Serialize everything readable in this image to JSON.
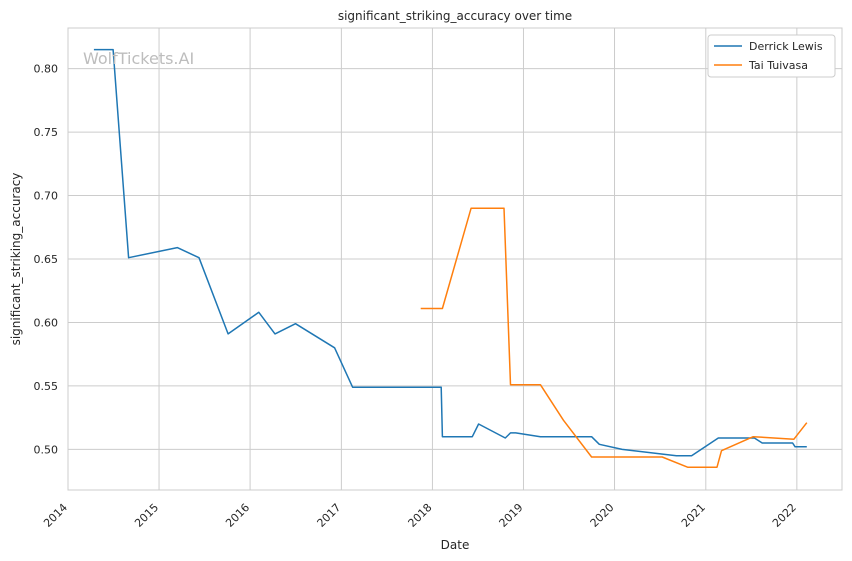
{
  "chart_data": {
    "type": "line",
    "title": "significant_striking_accuracy over time",
    "xlabel": "Date",
    "ylabel": "significant_striking_accuracy",
    "watermark": "WolfTickets.AI",
    "xlim": [
      "2014-01-01",
      "2022-07-01"
    ],
    "ylim": [
      0.468,
      0.832
    ],
    "grid": true,
    "legend_position": "top-right",
    "x_ticks": [
      "2014",
      "2015",
      "2016",
      "2017",
      "2018",
      "2019",
      "2020",
      "2021",
      "2022"
    ],
    "y_ticks": [
      "0.50",
      "0.55",
      "0.60",
      "0.65",
      "0.70",
      "0.75",
      "0.80"
    ],
    "series": [
      {
        "name": "Derrick Lewis",
        "color": "#1f77b4",
        "points": [
          [
            "2014-04-15",
            0.815
          ],
          [
            "2014-07-01",
            0.815
          ],
          [
            "2014-09-01",
            0.651
          ],
          [
            "2015-03-15",
            0.659
          ],
          [
            "2015-06-10",
            0.651
          ],
          [
            "2015-10-05",
            0.591
          ],
          [
            "2016-02-05",
            0.608
          ],
          [
            "2016-04-10",
            0.591
          ],
          [
            "2016-07-01",
            0.599
          ],
          [
            "2016-12-05",
            0.58
          ],
          [
            "2017-02-15",
            0.549
          ],
          [
            "2018-02-05",
            0.549
          ],
          [
            "2018-02-10",
            0.51
          ],
          [
            "2018-06-10",
            0.51
          ],
          [
            "2018-07-05",
            0.52
          ],
          [
            "2018-10-20",
            0.509
          ],
          [
            "2018-11-10",
            0.513
          ],
          [
            "2018-12-01",
            0.513
          ],
          [
            "2019-03-10",
            0.51
          ],
          [
            "2019-10-01",
            0.51
          ],
          [
            "2019-11-01",
            0.504
          ],
          [
            "2020-02-01",
            0.5
          ],
          [
            "2020-09-05",
            0.495
          ],
          [
            "2020-11-05",
            0.495
          ],
          [
            "2021-02-20",
            0.509
          ],
          [
            "2021-07-15",
            0.509
          ],
          [
            "2021-08-15",
            0.505
          ],
          [
            "2021-12-15",
            0.505
          ],
          [
            "2021-12-25",
            0.502
          ],
          [
            "2022-02-10",
            0.502
          ]
        ]
      },
      {
        "name": "Tai Tuivasa",
        "color": "#ff7f0e",
        "points": [
          [
            "2017-11-15",
            0.611
          ],
          [
            "2018-02-10",
            0.611
          ],
          [
            "2018-06-05",
            0.69
          ],
          [
            "2018-10-15",
            0.69
          ],
          [
            "2018-11-10",
            0.551
          ],
          [
            "2019-03-10",
            0.551
          ],
          [
            "2019-06-10",
            0.523
          ],
          [
            "2019-10-01",
            0.494
          ],
          [
            "2020-07-10",
            0.494
          ],
          [
            "2020-10-20",
            0.486
          ],
          [
            "2021-02-15",
            0.486
          ],
          [
            "2021-03-05",
            0.499
          ],
          [
            "2021-07-10",
            0.51
          ],
          [
            "2021-12-20",
            0.508
          ],
          [
            "2022-02-10",
            0.521
          ]
        ]
      }
    ]
  }
}
